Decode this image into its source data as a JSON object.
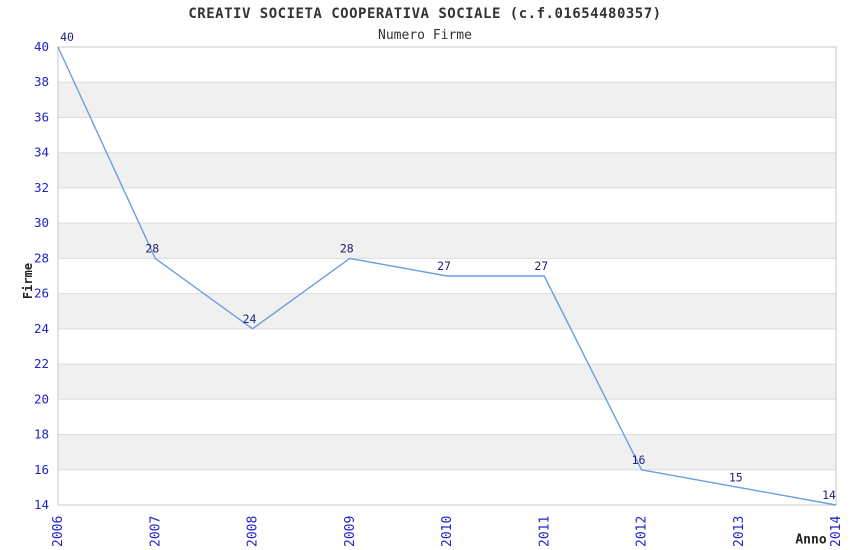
{
  "chart_data": {
    "type": "line",
    "title": "CREATIV SOCIETA COOPERATIVA SOCIALE (c.f.01654480357)",
    "subtitle": "Numero Firme",
    "xlabel": "Anno",
    "ylabel": "Firme",
    "categories": [
      "2006",
      "2007",
      "2008",
      "2009",
      "2010",
      "2011",
      "2012",
      "2013",
      "2014"
    ],
    "values": [
      40,
      28,
      24,
      28,
      27,
      27,
      16,
      15,
      14
    ],
    "series": [
      {
        "name": "Numero Firme",
        "values": [
          40,
          28,
          24,
          28,
          27,
          27,
          16,
          15,
          14
        ]
      }
    ],
    "ylim": [
      14,
      40
    ],
    "ytick_step": 2,
    "yticks": [
      14,
      16,
      18,
      20,
      22,
      24,
      26,
      28,
      30,
      32,
      34,
      36,
      38,
      40
    ],
    "grid": "horizontal-gridlines-with-alternating-bands",
    "legend_position": "none",
    "point_markers": false,
    "data_labels_shown": true,
    "colors": {
      "line": "#6C9FE0",
      "tick_label": "#2222CC",
      "data_label": "#222277",
      "band": "#F0F0F0",
      "gridline": "#DCDCDC",
      "border": "#C8C8C8",
      "title": "#333333",
      "axis_label": "#222222",
      "background": "#FFFFFF"
    }
  }
}
